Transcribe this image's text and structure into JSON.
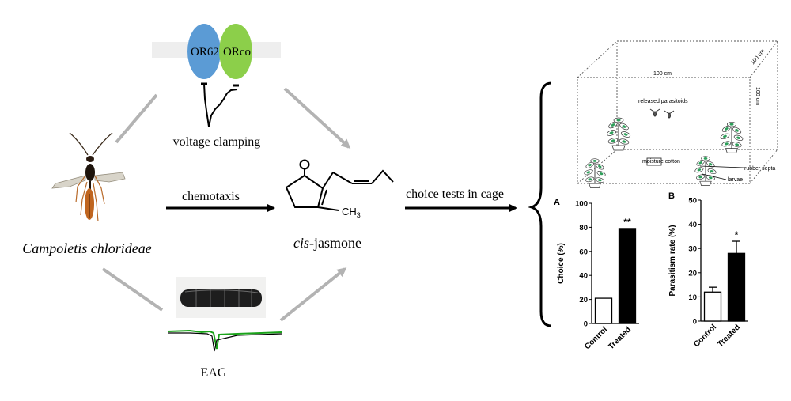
{
  "receptors": {
    "left": "OR62",
    "right": "ORco",
    "left_color": "#5b9bd5",
    "right_color": "#8ccf4a"
  },
  "method_top": "voltage clamping",
  "method_bottom": "EAG",
  "insect_name": "Campoletis chlorideae",
  "arrow_center": "chemotaxis",
  "compound": {
    "italic_prefix": "cis",
    "rest": "-jasmone",
    "methyl": "CH",
    "methyl_sub": "3",
    "carbonyl": "O"
  },
  "arrow_right": "choice tests in cage",
  "cage": {
    "width_label": "100 cm",
    "depth_label": "100 cm",
    "height_label": "100 cm",
    "released": "released parasitoids",
    "moisture": "moisture cotton",
    "septa": "rubber septa",
    "larvae": "larvae"
  },
  "colors": {
    "treated": "#000000",
    "control": "#ffffff",
    "arrow_gray": "#b3b3b3",
    "trace_green": "#1aa31a"
  },
  "chart_data": [
    {
      "type": "bar",
      "panel": "A",
      "categories": [
        "Control",
        "Treated"
      ],
      "values": [
        21,
        79
      ],
      "significance": [
        "",
        "**"
      ],
      "ylabel": "Choice (%)",
      "ylim": [
        0,
        100
      ],
      "yticks": [
        0,
        20,
        40,
        60,
        80,
        100
      ]
    },
    {
      "type": "bar",
      "panel": "B",
      "categories": [
        "Control",
        "Treated"
      ],
      "values": [
        12,
        28
      ],
      "errors": [
        2,
        5
      ],
      "significance": [
        "",
        "*"
      ],
      "ylabel": "Parasitism rate (%)",
      "ylim": [
        0,
        50
      ],
      "yticks": [
        0,
        10,
        20,
        30,
        40,
        50
      ]
    }
  ]
}
